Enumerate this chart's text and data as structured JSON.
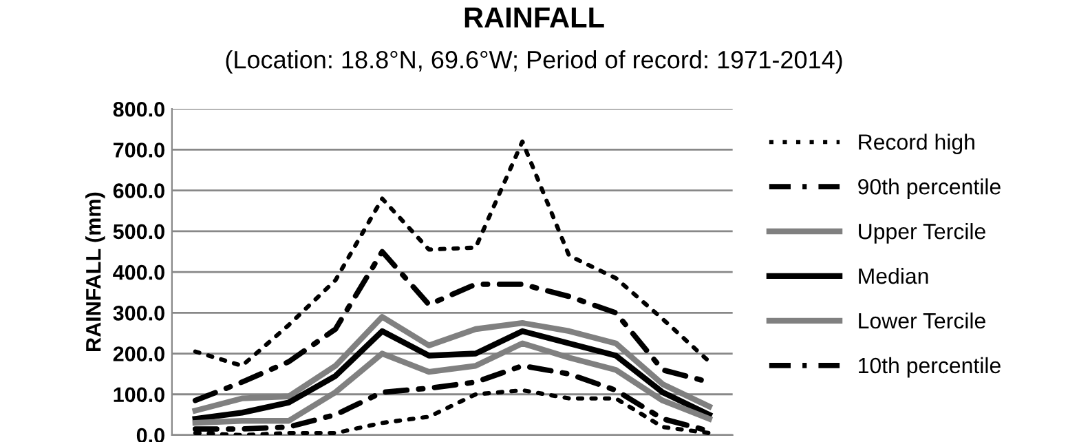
{
  "chart_data": {
    "type": "line",
    "title": "RAINFALL",
    "subtitle": "(Location: 18.8°N, 69.6°W; Period of record: 1971-2014)",
    "ylabel": "RAINFALL (mm)",
    "categories": [
      null,
      null,
      null,
      null,
      null,
      null,
      null,
      null,
      null,
      null,
      null,
      null
    ],
    "ylim": [
      0,
      800
    ],
    "yticks": [
      {
        "value": 0,
        "label": "0.0"
      },
      {
        "value": 100,
        "label": "100.0"
      },
      {
        "value": 200,
        "label": "200.0"
      },
      {
        "value": 300,
        "label": "300.0"
      },
      {
        "value": 400,
        "label": "400.0"
      },
      {
        "value": 500,
        "label": "500.0"
      },
      {
        "value": 600,
        "label": "600.0"
      },
      {
        "value": 700,
        "label": "700.0"
      },
      {
        "value": 800,
        "label": "800.0"
      }
    ],
    "grid": "y",
    "legend": "right",
    "tick_labels": "y",
    "series": [
      {
        "name": "Record high",
        "color": "#000000",
        "line_style": "dotted",
        "values": [
          205,
          170,
          270,
          380,
          580,
          455,
          460,
          720,
          440,
          385,
          285,
          180
        ]
      },
      {
        "name": "90th percentile",
        "color": "#000000",
        "line_style": "dashed",
        "values": [
          85,
          130,
          180,
          260,
          450,
          320,
          370,
          370,
          340,
          300,
          160,
          130
        ]
      },
      {
        "name": "Upper Tercile",
        "color": "#808080",
        "line_style": "solid",
        "values": [
          60,
          90,
          95,
          170,
          290,
          220,
          260,
          275,
          255,
          225,
          125,
          70
        ]
      },
      {
        "name": "Median",
        "color": "#000000",
        "line_style": "solid",
        "values": [
          40,
          55,
          80,
          145,
          255,
          195,
          200,
          255,
          225,
          195,
          105,
          50
        ]
      },
      {
        "name": "Lower Tercile",
        "color": "#808080",
        "line_style": "solid",
        "values": [
          30,
          35,
          35,
          105,
          200,
          155,
          170,
          225,
          190,
          160,
          85,
          40
        ]
      },
      {
        "name": "10th percentile",
        "color": "#000000",
        "line_style": "dashed",
        "values": [
          15,
          15,
          20,
          50,
          105,
          115,
          130,
          170,
          150,
          110,
          40,
          10
        ]
      },
      {
        "color": "#000000",
        "line_style": "dotted",
        "values": [
          5,
          0,
          5,
          5,
          30,
          45,
          100,
          110,
          90,
          90,
          20,
          5
        ]
      }
    ]
  }
}
